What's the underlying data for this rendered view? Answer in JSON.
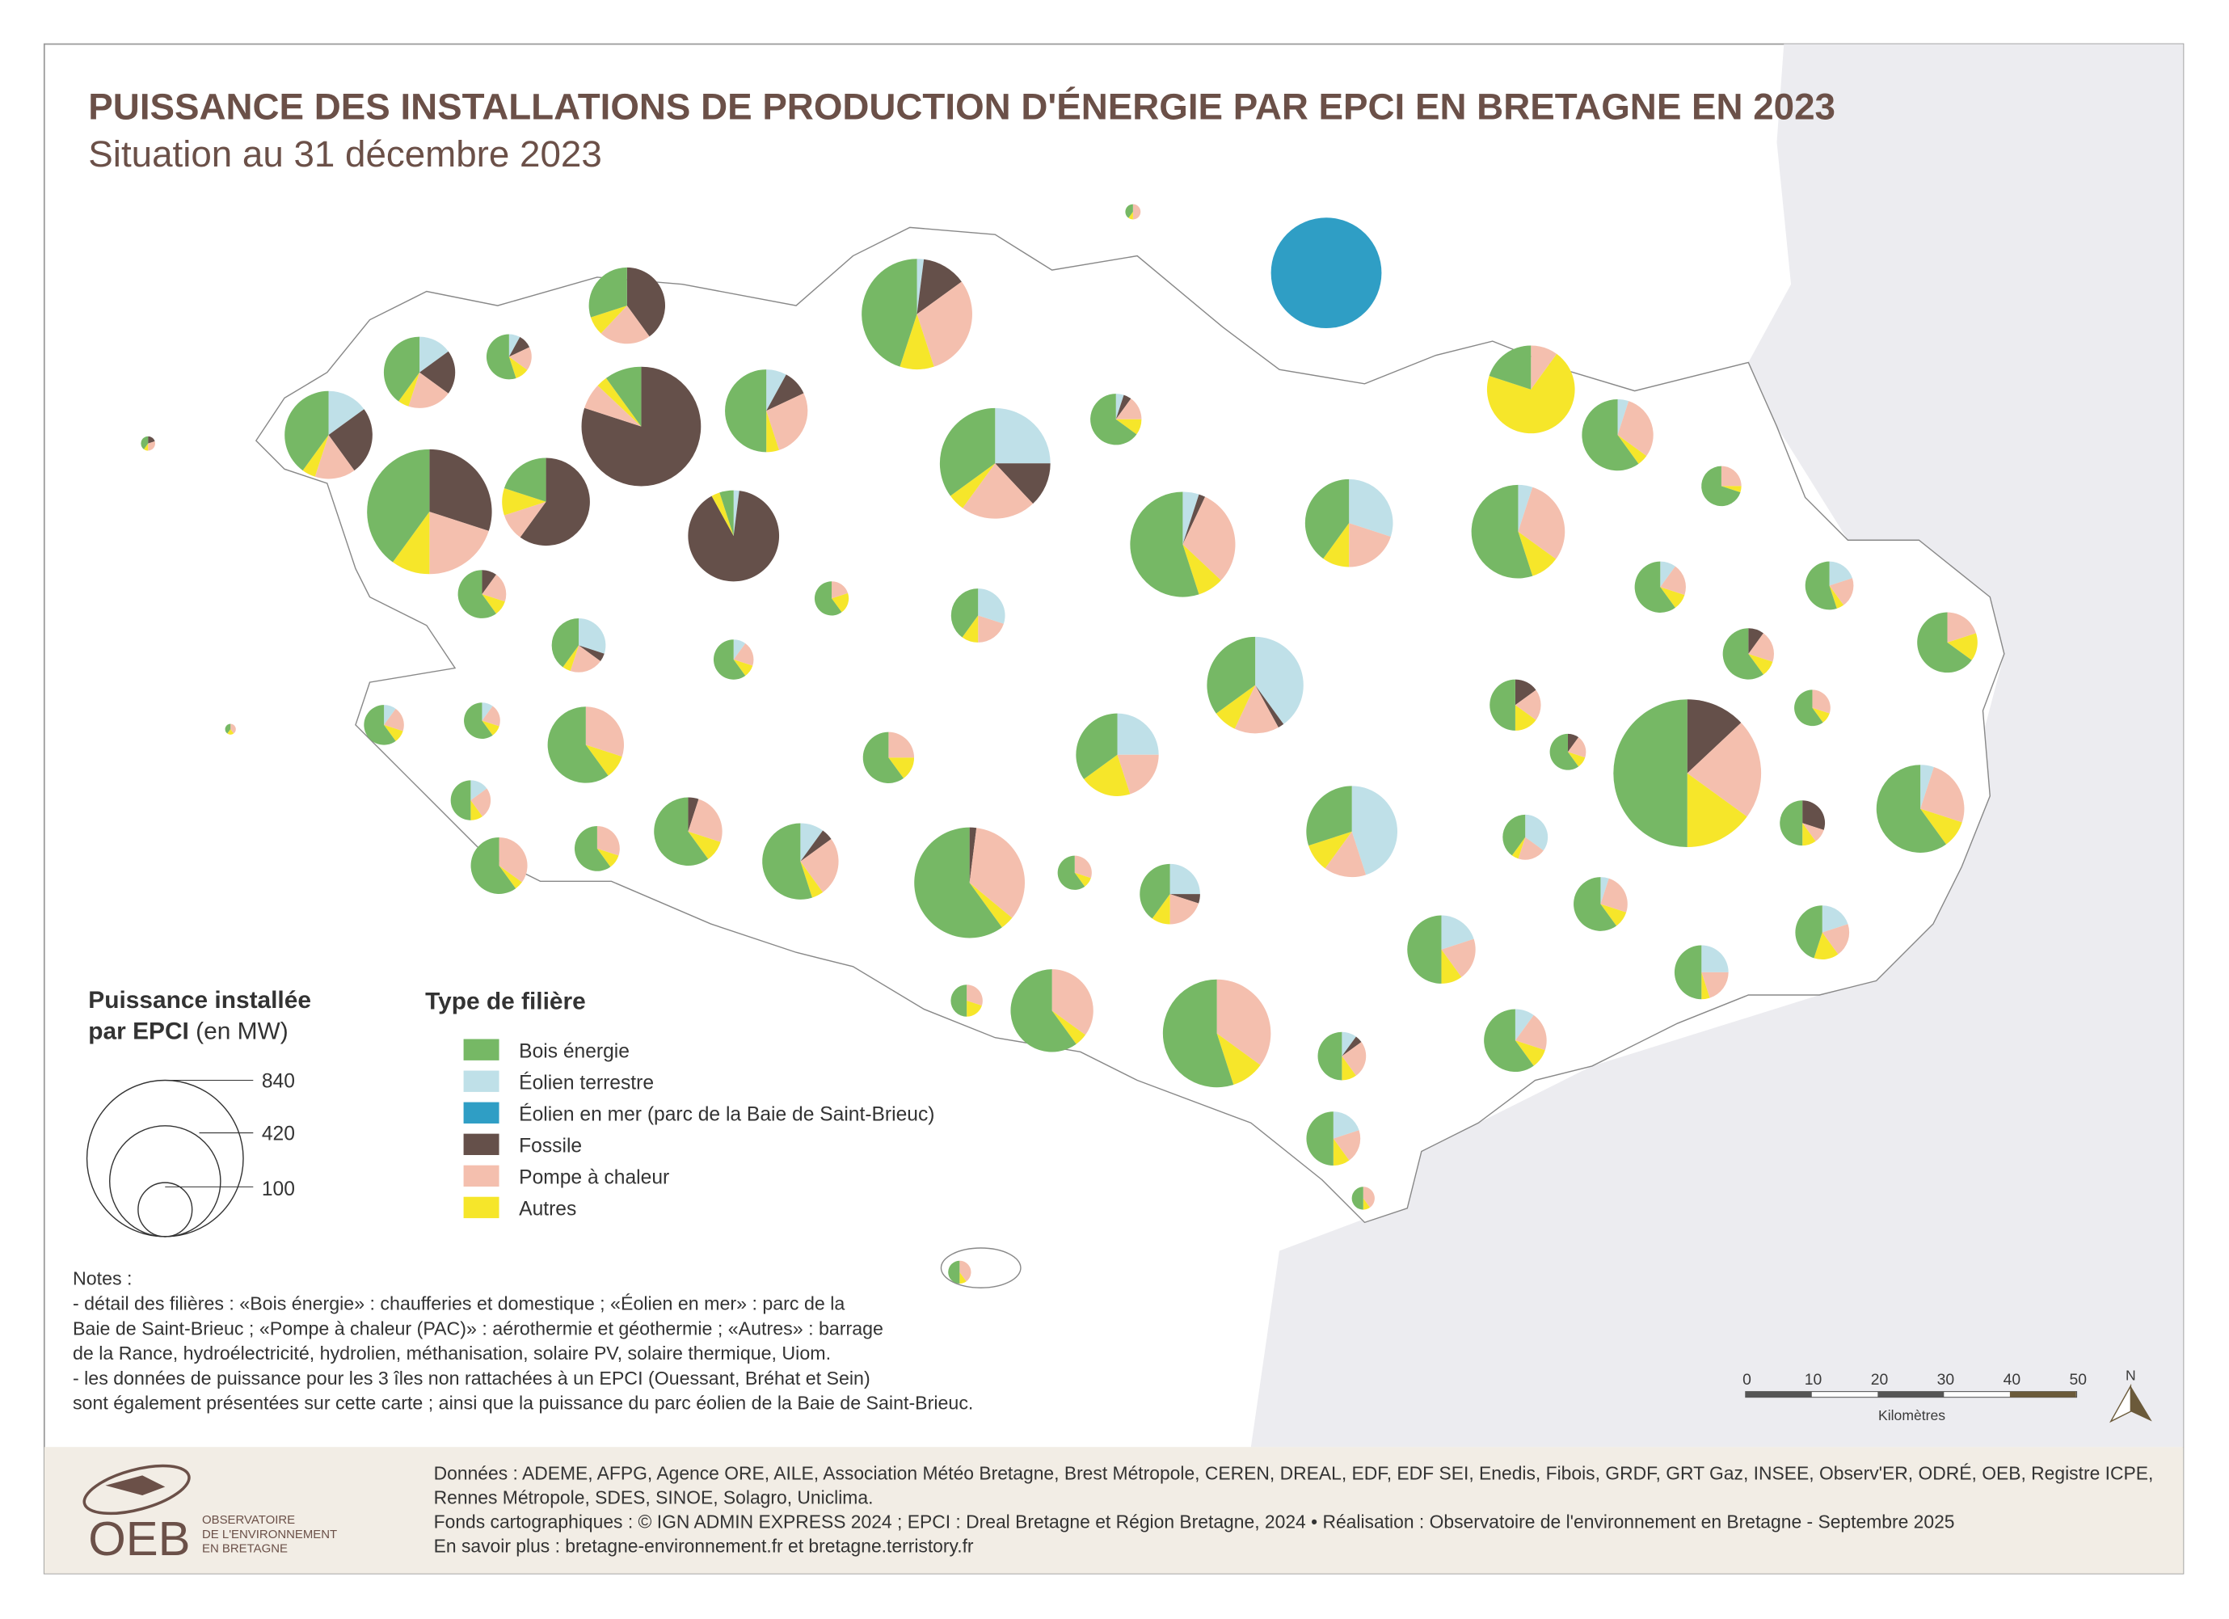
{
  "title": "PUISSANCE DES INSTALLATIONS DE PRODUCTION D'ÉNERGIE PAR EPCI EN BRETAGNE EN 2023",
  "subtitle": "Situation au 31 décembre 2023",
  "size_legend": {
    "title_line1": "Puissance installée",
    "title_line2_bold": "par EPCI",
    "title_line2_unit": "(en MW)",
    "values": [
      "840",
      "420",
      "100"
    ]
  },
  "type_legend": {
    "title": "Type de filière",
    "items": [
      {
        "label": "Bois énergie",
        "color": "#76b865"
      },
      {
        "label": "Éolien terrestre",
        "color": "#bfe0e8"
      },
      {
        "label": "Éolien en mer (parc de la Baie de Saint-Brieuc)",
        "color": "#2f9ec5"
      },
      {
        "label": "Fossile",
        "color": "#65504a"
      },
      {
        "label": "Pompe à chaleur",
        "color": "#f4bfae"
      },
      {
        "label": "Autres",
        "color": "#f6e62a"
      }
    ]
  },
  "notes": [
    "Notes :",
    "- détail des filières : «Bois énergie» : chaufferies et domestique ; «Éolien en mer» : parc de la",
    "Baie de Saint-Brieuc ;  «Pompe à chaleur (PAC)» : aérothermie et géothermie ; «Autres» : barrage",
    "de la Rance, hydroélectricité, hydrolien, méthanisation, solaire PV, solaire thermique, Uiom.",
    "- les données de puissance pour les 3 îles non rattachées à un EPCI (Ouessant, Bréhat et Sein)",
    "sont également présentées sur cette carte ; ainsi que la puissance du parc éolien de la Baie de Saint-Brieuc."
  ],
  "scale_bar": {
    "ticks": [
      "0",
      "10",
      "20",
      "30",
      "40",
      "50"
    ],
    "unit": "Kilomètres"
  },
  "north_label": "N",
  "footer": {
    "lines": [
      "Données : ADEME, AFPG, Agence ORE, AILE, Association Météo Bretagne, Brest Métropole, CEREN, DREAL, EDF, EDF SEI, Enedis, Fibois, GRDF, GRT Gaz, INSEE, Observ'ER, ODRÉ, OEB, Registre ICPE,",
      "Rennes Métropole, SDES, SINOE, Solagro, Uniclima.",
      "Fonds cartographiques : © IGN ADMIN EXPRESS 2024 ; EPCI : Dreal Bretagne et Région Bretagne, 2024 • Réalisation : Observatoire de l'environnement en Bretagne - Septembre 2025",
      "En savoir plus : bretagne-environnement.fr et bretagne.terristory.fr"
    ],
    "logo_text": "OEB",
    "logo_sub": [
      "OBSERVATOIRE",
      "DE L'ENVIRONNEMENT",
      "EN BRETAGNE"
    ]
  },
  "chart_data": {
    "type": "pie",
    "categories": [
      "Bois énergie",
      "Éolien terrestre",
      "Éolien en mer",
      "Fossile",
      "Pompe à chaleur",
      "Autres"
    ],
    "size_scale_mw": [
      840,
      420,
      100
    ],
    "pies": [
      {
        "mw": 8,
        "shares": [
          0.4,
          0,
          0,
          0,
          0.5,
          0.1
        ]
      },
      {
        "mw": 420,
        "shares": [
          0,
          0,
          1,
          0,
          0,
          0
        ]
      },
      {
        "mw": 420,
        "shares": [
          0.45,
          0.02,
          0,
          0.13,
          0.3,
          0.1
        ]
      },
      {
        "mw": 200,
        "shares": [
          0.3,
          0,
          0,
          0.4,
          0.22,
          0.08
        ]
      },
      {
        "mw": 70,
        "shares": [
          0.55,
          0.08,
          0,
          0.1,
          0.17,
          0.1
        ]
      },
      {
        "mw": 175,
        "shares": [
          0.4,
          0.15,
          0,
          0.2,
          0.2,
          0.05
        ]
      },
      {
        "mw": 265,
        "shares": [
          0.4,
          0.15,
          0,
          0.25,
          0.15,
          0.05
        ]
      },
      {
        "mw": 490,
        "shares": [
          0.1,
          0,
          0,
          0.8,
          0.07,
          0.03
        ]
      },
      {
        "mw": 235,
        "shares": [
          0.5,
          0.08,
          0,
          0.1,
          0.27,
          0.05
        ]
      },
      {
        "mw": 265,
        "shares": [
          0.2,
          0,
          0,
          0.6,
          0.1,
          0.1
        ]
      },
      {
        "mw": 535,
        "shares": [
          0.4,
          0,
          0,
          0.3,
          0.2,
          0.1
        ]
      },
      {
        "mw": 285,
        "shares": [
          0.05,
          0.02,
          0,
          0.9,
          0,
          0.03
        ]
      },
      {
        "mw": 420,
        "shares": [
          0.35,
          0.25,
          0,
          0.13,
          0.22,
          0.05
        ]
      },
      {
        "mw": 90,
        "shares": [
          0.65,
          0.05,
          0,
          0.05,
          0.15,
          0.1
        ]
      },
      {
        "mw": 380,
        "shares": [
          0.55,
          0.05,
          0,
          0.02,
          0.3,
          0.08
        ]
      },
      {
        "mw": 265,
        "shares": [
          0.4,
          0.3,
          0,
          0,
          0.2,
          0.1
        ]
      },
      {
        "mw": 265,
        "shares": [
          0.2,
          0,
          0,
          0,
          0.1,
          0.7
        ]
      },
      {
        "mw": 175,
        "shares": [
          0.6,
          0.05,
          0,
          0,
          0.3,
          0.05
        ]
      },
      {
        "mw": 300,
        "shares": [
          0.55,
          0.05,
          0,
          0,
          0.3,
          0.1
        ]
      },
      {
        "mw": 55,
        "shares": [
          0.7,
          0,
          0,
          0,
          0.25,
          0.05
        ]
      },
      {
        "mw": 80,
        "shares": [
          0.6,
          0,
          0,
          0.1,
          0.2,
          0.1
        ]
      },
      {
        "mw": 40,
        "shares": [
          0.6,
          0,
          0,
          0,
          0.2,
          0.2
        ]
      },
      {
        "mw": 100,
        "shares": [
          0.4,
          0.3,
          0,
          0,
          0.2,
          0.1
        ]
      },
      {
        "mw": 100,
        "shares": [
          0.4,
          0.3,
          0,
          0.05,
          0.2,
          0.05
        ]
      },
      {
        "mw": 55,
        "shares": [
          0.6,
          0.1,
          0,
          0,
          0.2,
          0.1
        ]
      },
      {
        "mw": 320,
        "shares": [
          0.35,
          0.4,
          0,
          0.02,
          0.15,
          0.08
        ]
      },
      {
        "mw": 90,
        "shares": [
          0.6,
          0.1,
          0,
          0,
          0.2,
          0.1
        ]
      },
      {
        "mw": 80,
        "shares": [
          0.55,
          0.2,
          0,
          0,
          0.2,
          0.05
        ]
      },
      {
        "mw": 125,
        "shares": [
          0.65,
          0,
          0,
          0,
          0.2,
          0.15
        ]
      },
      {
        "mw": 90,
        "shares": [
          0.6,
          0,
          0,
          0.1,
          0.2,
          0.1
        ]
      },
      {
        "mw": 90,
        "shares": [
          0.5,
          0,
          0,
          0.15,
          0.2,
          0.15
        ]
      },
      {
        "mw": 45,
        "shares": [
          0.6,
          0,
          0,
          0,
          0.3,
          0.1
        ]
      },
      {
        "mw": 45,
        "shares": [
          0.6,
          0,
          0,
          0.1,
          0.2,
          0.1
        ]
      },
      {
        "mw": 55,
        "shares": [
          0.6,
          0.1,
          0,
          0,
          0.2,
          0.1
        ]
      },
      {
        "mw": 45,
        "shares": [
          0.6,
          0.1,
          0,
          0,
          0.2,
          0.1
        ]
      },
      {
        "mw": 200,
        "shares": [
          0.6,
          0,
          0,
          0,
          0.3,
          0.1
        ]
      },
      {
        "mw": 90,
        "shares": [
          0.6,
          0,
          0,
          0,
          0.25,
          0.15
        ]
      },
      {
        "mw": 235,
        "shares": [
          0.35,
          0.25,
          0,
          0,
          0.2,
          0.2
        ]
      },
      {
        "mw": 750,
        "shares": [
          0.5,
          0,
          0,
          0.13,
          0.22,
          0.15
        ]
      },
      {
        "mw": 265,
        "shares": [
          0.6,
          0.05,
          0,
          0,
          0.25,
          0.1
        ]
      },
      {
        "mw": 55,
        "shares": [
          0.5,
          0.15,
          0,
          0,
          0.25,
          0.1
        ]
      },
      {
        "mw": 285,
        "shares": [
          0.3,
          0.45,
          0,
          0,
          0.15,
          0.1
        ]
      },
      {
        "mw": 70,
        "shares": [
          0.4,
          0.35,
          0,
          0,
          0.2,
          0.05
        ]
      },
      {
        "mw": 70,
        "shares": [
          0.5,
          0,
          0,
          0.3,
          0.1,
          0.1
        ]
      },
      {
        "mw": 160,
        "shares": [
          0.6,
          0,
          0,
          0.05,
          0.25,
          0.1
        ]
      },
      {
        "mw": 110,
        "shares": [
          0.6,
          0,
          0,
          0,
          0.35,
          0.05
        ]
      },
      {
        "mw": 70,
        "shares": [
          0.6,
          0,
          0,
          0,
          0.3,
          0.1
        ]
      },
      {
        "mw": 200,
        "shares": [
          0.55,
          0.1,
          0,
          0.05,
          0.25,
          0.05
        ]
      },
      {
        "mw": 420,
        "shares": [
          0.6,
          0,
          0,
          0.02,
          0.34,
          0.04
        ]
      },
      {
        "mw": 40,
        "shares": [
          0.6,
          0,
          0,
          0,
          0.3,
          0.1
        ]
      },
      {
        "mw": 125,
        "shares": [
          0.4,
          0.25,
          0,
          0.05,
          0.2,
          0.1
        ]
      },
      {
        "mw": 100,
        "shares": [
          0.6,
          0.05,
          0,
          0,
          0.25,
          0.1
        ]
      },
      {
        "mw": 160,
        "shares": [
          0.5,
          0.2,
          0,
          0,
          0.2,
          0.1
        ]
      },
      {
        "mw": 100,
        "shares": [
          0.45,
          0.2,
          0,
          0,
          0.2,
          0.15
        ]
      },
      {
        "mw": 100,
        "shares": [
          0.5,
          0.25,
          0,
          0,
          0.2,
          0.05
        ]
      },
      {
        "mw": 235,
        "shares": [
          0.6,
          0,
          0,
          0,
          0.35,
          0.05
        ]
      },
      {
        "mw": 400,
        "shares": [
          0.55,
          0,
          0,
          0,
          0.35,
          0.1
        ]
      },
      {
        "mw": 35,
        "shares": [
          0.5,
          0,
          0,
          0,
          0.3,
          0.2
        ]
      },
      {
        "mw": 135,
        "shares": [
          0.6,
          0.1,
          0,
          0,
          0.2,
          0.1
        ]
      },
      {
        "mw": 80,
        "shares": [
          0.5,
          0.1,
          0,
          0.05,
          0.25,
          0.1
        ]
      },
      {
        "mw": 100,
        "shares": [
          0.5,
          0.2,
          0,
          0,
          0.2,
          0.1
        ]
      },
      {
        "mw": 18,
        "shares": [
          0.5,
          0,
          0,
          0,
          0.4,
          0.1
        ]
      },
      {
        "mw": 18,
        "shares": [
          0.5,
          0,
          0,
          0,
          0.4,
          0.1
        ]
      },
      {
        "mw": 7,
        "shares": [
          0.4,
          0,
          0,
          0.2,
          0.3,
          0.1
        ]
      },
      {
        "mw": 4,
        "shares": [
          0.4,
          0,
          0,
          0,
          0.4,
          0.2
        ]
      }
    ]
  }
}
